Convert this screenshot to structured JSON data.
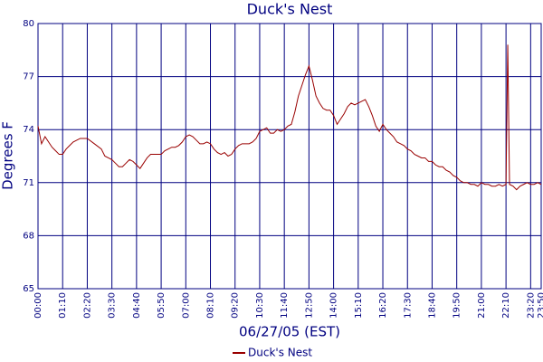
{
  "chart_data": {
    "type": "line",
    "title": "Duck's Nest",
    "x_label": "06/27/05 (EST)",
    "y_label": "Degrees F",
    "x": [
      "00:00",
      "00:10",
      "00:20",
      "00:30",
      "00:40",
      "00:50",
      "01:00",
      "01:10",
      "01:20",
      "01:30",
      "01:40",
      "01:50",
      "02:00",
      "02:20",
      "02:40",
      "03:00",
      "03:10",
      "03:20",
      "03:30",
      "03:40",
      "03:50",
      "04:00",
      "04:10",
      "04:20",
      "04:30",
      "04:40",
      "04:50",
      "05:00",
      "05:10",
      "05:20",
      "05:30",
      "05:50",
      "06:00",
      "06:10",
      "06:20",
      "06:30",
      "06:40",
      "06:50",
      "07:00",
      "07:10",
      "07:20",
      "07:30",
      "07:40",
      "07:50",
      "08:00",
      "08:10",
      "08:20",
      "08:30",
      "08:40",
      "08:50",
      "09:00",
      "09:10",
      "09:20",
      "09:30",
      "09:40",
      "09:50",
      "10:00",
      "10:10",
      "10:20",
      "10:30",
      "10:40",
      "10:50",
      "11:00",
      "11:10",
      "11:20",
      "11:30",
      "11:40",
      "11:50",
      "12:00",
      "12:10",
      "12:20",
      "12:30",
      "12:40",
      "12:50",
      "13:00",
      "13:10",
      "13:20",
      "13:30",
      "13:40",
      "13:50",
      "14:00",
      "14:10",
      "14:20",
      "14:30",
      "14:40",
      "14:50",
      "15:00",
      "15:10",
      "15:20",
      "15:30",
      "15:40",
      "15:50",
      "16:00",
      "16:10",
      "16:20",
      "16:30",
      "16:40",
      "16:50",
      "17:00",
      "17:10",
      "17:20",
      "17:30",
      "17:40",
      "17:50",
      "18:00",
      "18:10",
      "18:20",
      "18:30",
      "18:40",
      "18:50",
      "19:00",
      "19:10",
      "19:20",
      "19:30",
      "19:40",
      "19:50",
      "20:00",
      "20:10",
      "20:20",
      "20:30",
      "20:40",
      "20:50",
      "21:00",
      "21:10",
      "21:20",
      "21:30",
      "21:40",
      "21:50",
      "22:00",
      "22:10",
      "22:15",
      "22:20",
      "22:30",
      "22:40",
      "22:50",
      "23:00",
      "23:10",
      "23:20",
      "23:30",
      "23:40",
      "23:50"
    ],
    "series": [
      {
        "name": "Duck's Nest",
        "color": "#990000",
        "values": [
          74.2,
          73.2,
          73.6,
          73.3,
          73.0,
          72.8,
          72.6,
          72.6,
          72.9,
          73.1,
          73.3,
          73.4,
          73.5,
          73.5,
          73.2,
          72.9,
          72.5,
          72.4,
          72.3,
          72.1,
          71.9,
          71.9,
          72.1,
          72.3,
          72.2,
          72.0,
          71.8,
          72.1,
          72.4,
          72.6,
          72.6,
          72.6,
          72.8,
          72.9,
          73.0,
          73.0,
          73.1,
          73.3,
          73.6,
          73.7,
          73.6,
          73.4,
          73.2,
          73.2,
          73.3,
          73.2,
          72.9,
          72.7,
          72.6,
          72.7,
          72.5,
          72.6,
          72.9,
          73.1,
          73.2,
          73.2,
          73.2,
          73.3,
          73.5,
          73.9,
          74.0,
          74.1,
          73.8,
          73.8,
          74.0,
          73.9,
          74.0,
          74.2,
          74.3,
          75.0,
          75.9,
          76.5,
          77.1,
          77.6,
          76.8,
          75.9,
          75.5,
          75.2,
          75.1,
          75.1,
          74.8,
          74.3,
          74.6,
          74.9,
          75.3,
          75.5,
          75.4,
          75.5,
          75.6,
          75.7,
          75.3,
          74.8,
          74.2,
          73.9,
          74.3,
          74.0,
          73.8,
          73.6,
          73.3,
          73.2,
          73.1,
          72.9,
          72.8,
          72.6,
          72.5,
          72.4,
          72.4,
          72.2,
          72.2,
          72.0,
          71.9,
          71.9,
          71.7,
          71.6,
          71.4,
          71.3,
          71.1,
          71.0,
          71.0,
          70.9,
          70.9,
          70.8,
          71.0,
          70.9,
          70.9,
          70.8,
          70.8,
          70.9,
          70.8,
          70.9,
          78.8,
          70.9,
          70.8,
          70.6,
          70.8,
          70.9,
          71.0,
          70.9,
          70.9,
          71.0,
          70.9
        ]
      }
    ],
    "xlim": [
      "00:00",
      "23:50"
    ],
    "xticks": [
      "00:00",
      "01:10",
      "02:20",
      "03:30",
      "04:40",
      "05:50",
      "07:00",
      "08:10",
      "09:20",
      "10:30",
      "11:40",
      "12:50",
      "14:00",
      "15:10",
      "16:20",
      "17:30",
      "18:40",
      "19:50",
      "21:00",
      "22:10",
      "23:20",
      "23:50"
    ],
    "ylim": [
      65,
      80
    ],
    "yticks": [
      65,
      68,
      71,
      74,
      77,
      80
    ],
    "grid": true
  }
}
